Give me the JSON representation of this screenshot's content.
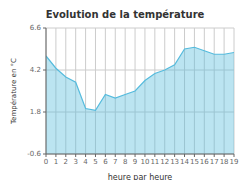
{
  "chart_data": {
    "type": "area",
    "title": "Evolution de la température",
    "xlabel": "heure par heure",
    "ylabel": "Température en °C",
    "x": [
      0,
      1,
      2,
      3,
      4,
      5,
      6,
      7,
      8,
      9,
      10,
      11,
      12,
      13,
      14,
      15,
      16,
      17,
      18,
      19
    ],
    "values": [
      5.0,
      4.3,
      3.8,
      3.5,
      2.0,
      1.9,
      2.8,
      2.6,
      2.8,
      3.0,
      3.6,
      4.0,
      4.2,
      4.5,
      5.4,
      5.5,
      5.3,
      5.1,
      5.1,
      5.2
    ],
    "color": "#55bbdd",
    "xlim": [
      0,
      19
    ],
    "ylim": [
      -0.6,
      6.6
    ],
    "xticks": [
      0,
      1,
      2,
      3,
      4,
      5,
      6,
      7,
      8,
      9,
      10,
      11,
      12,
      13,
      14,
      15,
      16,
      17,
      18,
      19
    ],
    "yticks": [
      -0.6,
      1.8,
      4.2,
      6.6
    ],
    "grid": true
  }
}
